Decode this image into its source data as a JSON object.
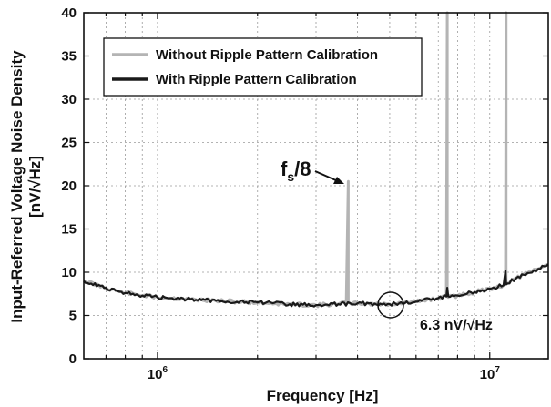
{
  "chart_data": {
    "type": "line",
    "xlabel": "Frequency [Hz]",
    "ylabel_line1": "Input-Referred Voltage Noise Density",
    "ylabel_line2": "[nV/√Hz]",
    "x_scale": "log",
    "xlim": [
      600000,
      15000000
    ],
    "ylim": [
      0,
      40
    ],
    "y_ticks": [
      0,
      5,
      10,
      15,
      20,
      25,
      30,
      35,
      40
    ],
    "x_tick_labels": [
      {
        "value": 1000000,
        "base": "10",
        "exp": "6"
      },
      {
        "value": 10000000,
        "base": "10",
        "exp": "7"
      }
    ],
    "grid": true,
    "legend_position": "top-left",
    "series": [
      {
        "name": "Without Ripple Pattern Calibration",
        "color": "#b4b4b4",
        "x": [
          600000,
          700000,
          800000,
          1000000,
          1500000,
          2000000,
          2500000,
          3000000,
          3500000,
          3700000,
          3750000,
          3750000,
          3800000,
          4000000,
          5000000,
          6000000,
          7000000,
          7400000,
          7450000,
          7450000,
          7500000,
          8000000,
          9000000,
          10000000,
          11000000,
          11150000,
          11200000,
          11200000,
          11300000,
          12000000,
          13000000,
          14000000,
          15000000
        ],
        "y": [
          9.0,
          8.2,
          7.6,
          7.1,
          6.7,
          6.5,
          6.3,
          6.2,
          6.3,
          6.5,
          20.5,
          6.5,
          6.4,
          6.4,
          6.3,
          6.6,
          7.0,
          7.2,
          40,
          7.2,
          7.1,
          7.3,
          7.7,
          8.1,
          8.5,
          8.6,
          40,
          8.6,
          8.7,
          9.3,
          9.9,
          10.4,
          10.9
        ]
      },
      {
        "name": "With Ripple Pattern Calibration",
        "color": "#1a1a1a",
        "x": [
          600000,
          700000,
          800000,
          1000000,
          1500000,
          2000000,
          2500000,
          3000000,
          3500000,
          4000000,
          5000000,
          6000000,
          7000000,
          7400000,
          7450000,
          7500000,
          8000000,
          9000000,
          10000000,
          11000000,
          11150000,
          11200000,
          11300000,
          12000000,
          13000000,
          14000000,
          15000000
        ],
        "y": [
          9.0,
          8.2,
          7.6,
          7.1,
          6.7,
          6.5,
          6.3,
          6.2,
          6.3,
          6.4,
          6.3,
          6.6,
          7.0,
          7.2,
          8.2,
          7.2,
          7.3,
          7.7,
          8.1,
          8.5,
          10.2,
          8.6,
          8.7,
          9.3,
          9.9,
          10.4,
          10.9
        ]
      }
    ],
    "annotations": [
      {
        "text_main": "f",
        "text_sub": "s",
        "text_rest": "/8",
        "target_x": 3750000,
        "target_y": 20.5
      },
      {
        "text": "6.3 nV/√Hz",
        "target_x": 5000000,
        "target_y": 6.3
      }
    ]
  }
}
